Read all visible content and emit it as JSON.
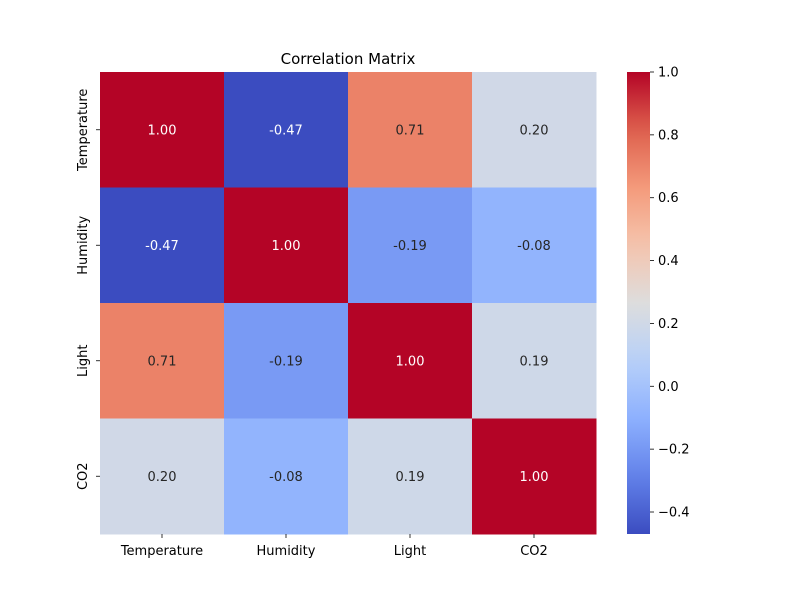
{
  "chart_data": {
    "type": "heatmap",
    "title": "Correlation Matrix",
    "xlabel": "",
    "ylabel": "",
    "x_categories": [
      "Temperature",
      "Humidity",
      "Light",
      "CO2"
    ],
    "y_categories": [
      "Temperature",
      "Humidity",
      "Light",
      "CO2"
    ],
    "values": [
      [
        1.0,
        -0.47,
        0.71,
        0.2
      ],
      [
        -0.47,
        1.0,
        -0.19,
        -0.08
      ],
      [
        0.71,
        -0.19,
        1.0,
        0.19
      ],
      [
        0.2,
        -0.08,
        0.19,
        1.0
      ]
    ],
    "value_labels": [
      [
        "1.00",
        "-0.47",
        "0.71",
        "0.20"
      ],
      [
        "-0.47",
        "1.00",
        "-0.19",
        "-0.08"
      ],
      [
        "0.71",
        "-0.19",
        "1.00",
        "0.19"
      ],
      [
        "0.20",
        "-0.08",
        "0.19",
        "1.00"
      ]
    ],
    "colormap": "coolwarm",
    "vmin": -0.47,
    "vmax": 1.0,
    "colorbar": {
      "ticks": [
        1.0,
        0.8,
        0.6,
        0.4,
        0.2,
        0.0,
        -0.2,
        -0.4
      ],
      "tick_labels": [
        "1.0",
        "0.8",
        "0.6",
        "0.4",
        "0.2",
        "0.0",
        "−0.2",
        "−0.4"
      ]
    },
    "grid": false,
    "colorbar_position": "right"
  }
}
